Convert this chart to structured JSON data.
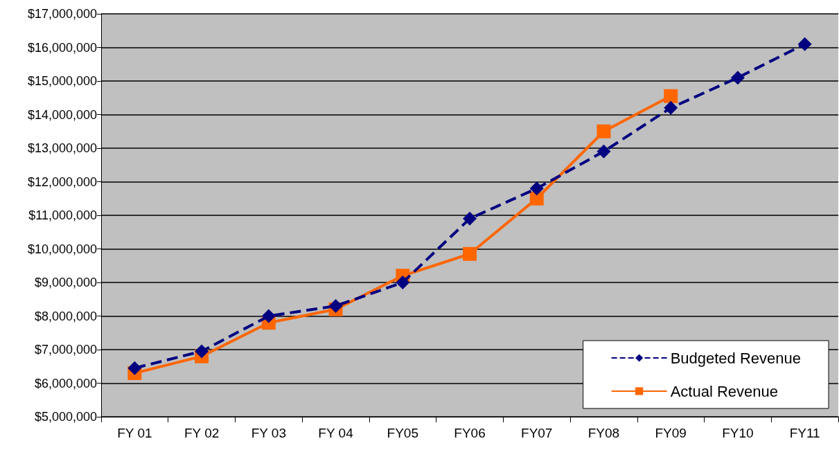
{
  "chart_data": {
    "type": "line",
    "categories": [
      "FY 01",
      "FY 02",
      "FY 03",
      "FY 04",
      "FY05",
      "FY06",
      "FY07",
      "FY08",
      "FY09",
      "FY10",
      "FY11"
    ],
    "series": [
      {
        "name": "Budgeted Revenue",
        "color": "#000080",
        "marker": "diamond",
        "line_style": "dashed",
        "values": [
          6450000,
          6950000,
          8000000,
          8300000,
          9000000,
          10900000,
          11800000,
          12900000,
          14200000,
          15100000,
          16100000
        ]
      },
      {
        "name": "Actual Revenue",
        "color": "#ff6600",
        "marker": "square",
        "line_style": "solid",
        "values": [
          6300000,
          6800000,
          7800000,
          8200000,
          9200000,
          9850000,
          11500000,
          13500000,
          14550000,
          null,
          null
        ]
      }
    ],
    "ylim": [
      5000000,
      17000000
    ],
    "yticks": [
      {
        "value": 5000000,
        "label": "$5,000,000"
      },
      {
        "value": 6000000,
        "label": "$6,000,000"
      },
      {
        "value": 7000000,
        "label": "$7,000,000"
      },
      {
        "value": 8000000,
        "label": "$8,000,000"
      },
      {
        "value": 9000000,
        "label": "$9,000,000"
      },
      {
        "value": 10000000,
        "label": "$10,000,000"
      },
      {
        "value": 11000000,
        "label": "$11,000,000"
      },
      {
        "value": 12000000,
        "label": "$12,000,000"
      },
      {
        "value": 13000000,
        "label": "$13,000,000"
      },
      {
        "value": 14000000,
        "label": "$14,000,000"
      },
      {
        "value": 15000000,
        "label": "$15,000,000"
      },
      {
        "value": 16000000,
        "label": "$16,000,000"
      },
      {
        "value": 17000000,
        "label": "$17,000,000"
      }
    ],
    "grid": "y",
    "legend": "bottom right"
  }
}
